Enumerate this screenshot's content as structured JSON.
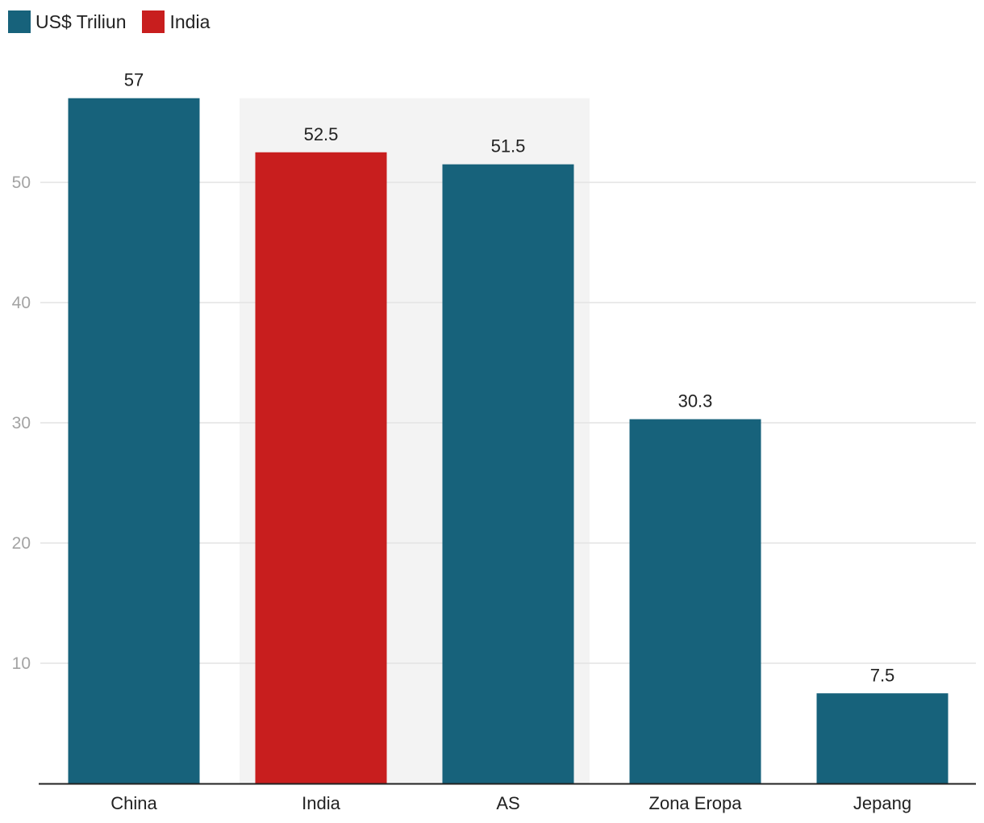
{
  "legend": [
    {
      "label": "US$ Triliun",
      "color": "#17627b"
    },
    {
      "label": "India",
      "color": "#c81e1e"
    }
  ],
  "chart_data": {
    "type": "bar",
    "categories": [
      "China",
      "India",
      "AS",
      "Zona Eropa",
      "Jepang"
    ],
    "values": [
      57,
      52.5,
      51.5,
      30.3,
      7.5
    ],
    "value_labels": [
      "57",
      "52.5",
      "51.5",
      "30.3",
      "7.5"
    ],
    "bar_colors": [
      "#17627b",
      "#c81e1e",
      "#17627b",
      "#17627b",
      "#17627b"
    ],
    "highlight_band": {
      "from_category": "India",
      "to_category": "AS",
      "color": "#f3f3f3"
    },
    "yticks": [
      "10",
      "20",
      "30",
      "40",
      "50"
    ],
    "ylim": [
      0,
      57
    ],
    "grid": true,
    "legend_position": "top-left"
  }
}
